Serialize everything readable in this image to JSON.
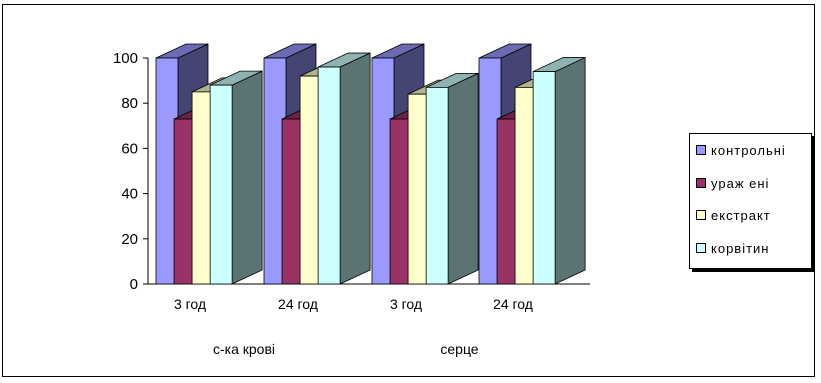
{
  "chart_data": {
    "type": "bar",
    "style": "3d-clustered-column",
    "categories": [
      "3 год",
      "24 год",
      "3 год",
      "24 год"
    ],
    "groups": [
      {
        "label": "с-ка крові",
        "categories": [
          0,
          1
        ]
      },
      {
        "label": "серце",
        "categories": [
          2,
          3
        ]
      }
    ],
    "series": [
      {
        "name": "контрольні",
        "color": "#9999ff",
        "values": [
          100,
          100,
          100,
          100
        ]
      },
      {
        "name": "ураж ені",
        "color": "#993366",
        "values": [
          73,
          73,
          73,
          73
        ]
      },
      {
        "name": "екстракт",
        "color": "#ffffcc",
        "values": [
          85,
          92,
          84,
          87
        ]
      },
      {
        "name": "корвітин",
        "color": "#ccffff",
        "values": [
          88,
          96,
          87,
          94
        ]
      }
    ],
    "ylim": [
      0,
      100
    ],
    "yticks": [
      "0",
      "20",
      "40",
      "60",
      "80",
      "100"
    ],
    "legend_position": "right",
    "grid": false
  }
}
